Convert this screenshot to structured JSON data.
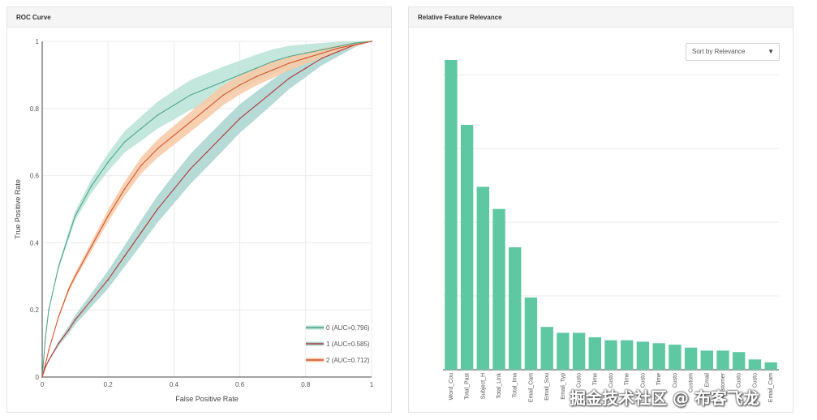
{
  "panels": {
    "roc": {
      "title": "ROC Curve"
    },
    "feature": {
      "title": "Relative Feature Relevance"
    }
  },
  "controls": {
    "sort": {
      "selected": "Sort by Relevance",
      "caret": "▼"
    }
  },
  "watermark": "掘金技术社区 @ 布客飞龙",
  "colors": {
    "class0": "#4fa58f",
    "class1": "#b23a3a",
    "class2": "#d3542f",
    "band0": "#b8e3d6",
    "band1": "#a9d3cf",
    "band2": "#f8c9a4",
    "bar": "#5ec8a2",
    "grid": "#ebebeb"
  },
  "chart_data": [
    {
      "type": "line",
      "title": "ROC Curve",
      "xlabel": "False Positive Rate",
      "ylabel": "True Positive Rate",
      "xlim": [
        0,
        1
      ],
      "ylim": [
        0,
        1
      ],
      "xticks": [
        "0",
        "0.2",
        "0.4",
        "0.6",
        "0.8",
        "1"
      ],
      "yticks": [
        "0",
        "0.2",
        "0.4",
        "0.6",
        "0.8",
        "1"
      ],
      "grid": true,
      "legend_position": "bottom-right",
      "x": [
        0,
        0.01,
        0.02,
        0.05,
        0.08,
        0.1,
        0.15,
        0.2,
        0.25,
        0.3,
        0.35,
        0.4,
        0.45,
        0.5,
        0.55,
        0.6,
        0.65,
        0.7,
        0.75,
        0.8,
        0.85,
        0.9,
        0.95,
        1
      ],
      "series": [
        {
          "name": "0 (AUC=0.796)",
          "values": [
            0,
            0.12,
            0.2,
            0.33,
            0.42,
            0.48,
            0.57,
            0.64,
            0.7,
            0.74,
            0.78,
            0.81,
            0.84,
            0.86,
            0.88,
            0.9,
            0.92,
            0.94,
            0.955,
            0.965,
            0.975,
            0.985,
            0.995,
            1
          ],
          "band": 0.045
        },
        {
          "name": "1 (AUC=0.585)",
          "values": [
            0,
            0.03,
            0.05,
            0.1,
            0.14,
            0.17,
            0.23,
            0.29,
            0.36,
            0.43,
            0.5,
            0.56,
            0.62,
            0.67,
            0.72,
            0.77,
            0.81,
            0.85,
            0.89,
            0.92,
            0.95,
            0.97,
            0.99,
            1
          ],
          "band": 0.045
        },
        {
          "name": "2 (AUC=0.712)",
          "values": [
            0,
            0.04,
            0.08,
            0.18,
            0.26,
            0.3,
            0.39,
            0.48,
            0.56,
            0.63,
            0.68,
            0.72,
            0.76,
            0.8,
            0.84,
            0.87,
            0.895,
            0.915,
            0.935,
            0.95,
            0.965,
            0.98,
            0.99,
            1
          ],
          "band": 0.03
        }
      ]
    },
    {
      "type": "bar",
      "title": "Relative Feature Relevance",
      "ylim": [
        0,
        0.21
      ],
      "grid": true,
      "categories": [
        "Word_Cou",
        "Total_Past",
        "Subject_H",
        "Total_Link",
        "Total_Ima",
        "Email_Cam",
        "Email_Sou",
        "Email_Typ",
        "Custo",
        "Time",
        "Custo",
        "Time",
        "Custo",
        "Time",
        "Custo",
        "Custom",
        "Email",
        "Customer",
        "Custo",
        "Custo",
        "Email_Cam"
      ],
      "values": [
        0.21,
        0.166,
        0.124,
        0.109,
        0.083,
        0.049,
        0.029,
        0.025,
        0.025,
        0.022,
        0.02,
        0.02,
        0.019,
        0.018,
        0.017,
        0.015,
        0.013,
        0.013,
        0.012,
        0.007,
        0.005
      ]
    }
  ]
}
